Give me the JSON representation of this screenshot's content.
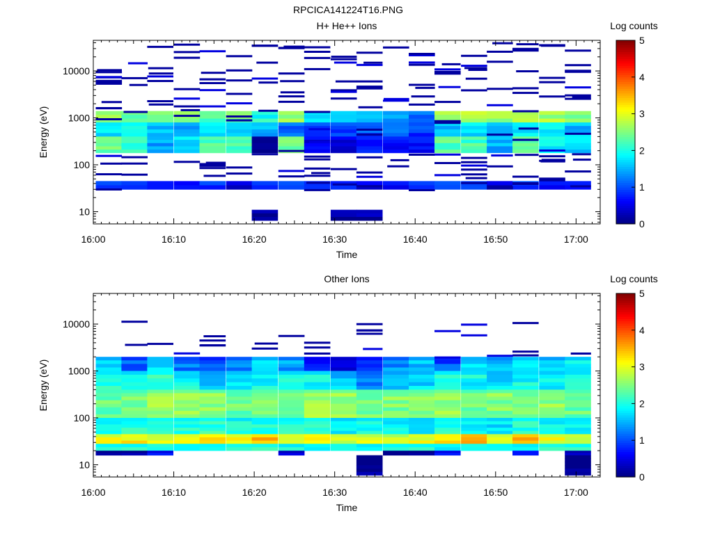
{
  "page_title": "RPCICA141224T16.PNG",
  "chart_data": [
    {
      "type": "heatmap",
      "title": "H+ He++ Ions",
      "xlabel": "Time",
      "ylabel": "Energy (eV)",
      "x_tick_labels": [
        "16:00",
        "16:10",
        "16:20",
        "16:30",
        "16:40",
        "16:50",
        "17:00"
      ],
      "x_range_minutes": [
        0,
        63
      ],
      "y_tick_labels": [
        "10",
        "100",
        "1000",
        "10000"
      ],
      "y_scale": "log",
      "y_range": [
        5.5,
        45000
      ],
      "colorbar": {
        "label": "Log counts",
        "range": [
          0,
          5
        ],
        "tick_labels": [
          "0",
          "1",
          "2",
          "3",
          "4",
          "5"
        ]
      },
      "time_bins_start_minute": [
        0.3,
        3.5,
        6.7,
        10.0,
        13.2,
        16.5,
        19.7,
        23.0,
        26.2,
        29.5,
        32.7,
        36.0,
        39.2,
        42.4,
        45.7,
        48.9,
        52.1,
        55.4,
        58.6
      ],
      "bands": [
        {
          "emin": 800,
          "emax": 1400,
          "levels": [
            2.5,
            2.4,
            2.5,
            2.6,
            2.3,
            2.5,
            2.0,
            2.6,
            1.7,
            1.6,
            1.5,
            1.3,
            1.2,
            2.7,
            2.8,
            2.7,
            2.6,
            2.7,
            2.5
          ]
        },
        {
          "emin": 400,
          "emax": 800,
          "levels": [
            1.7,
            1.8,
            1.6,
            1.4,
            1.8,
            1.6,
            1.5,
            1.2,
            1.0,
            1.0,
            1.0,
            1.1,
            0.9,
            1.6,
            1.8,
            1.5,
            1.7,
            1.8,
            1.6
          ]
        },
        {
          "emin": 180,
          "emax": 400,
          "levels": [
            2.4,
            2.1,
            1.4,
            1.8,
            2.2,
            2.2,
            0.0,
            2.4,
            0.6,
            0.5,
            0.7,
            0.7,
            0.7,
            2.3,
            2.2,
            1.5,
            2.3,
            1.9,
            1.7
          ]
        },
        {
          "emin": 30,
          "emax": 45,
          "levels": [
            0.9,
            0.8,
            0.6,
            0.5,
            0.9,
            0.4,
            0.8,
            0.9,
            0.7,
            0.6,
            0.5,
            0.6,
            0.8,
            0.9,
            0.8,
            0.4,
            0.9,
            0.6,
            0.6
          ]
        },
        {
          "emin": 6.5,
          "emax": 11,
          "levels": [
            null,
            null,
            null,
            null,
            null,
            null,
            0.15,
            null,
            null,
            0.15,
            0.15,
            null,
            null,
            null,
            null,
            null,
            null,
            null,
            null
          ]
        }
      ]
    },
    {
      "type": "heatmap",
      "title": "Other Ions",
      "xlabel": "Time",
      "ylabel": "Energy (eV)",
      "x_tick_labels": [
        "16:00",
        "16:10",
        "16:20",
        "16:30",
        "16:40",
        "16:50",
        "17:00"
      ],
      "x_range_minutes": [
        0,
        63
      ],
      "y_tick_labels": [
        "10",
        "100",
        "1000",
        "10000"
      ],
      "y_scale": "log",
      "y_range": [
        5.5,
        45000
      ],
      "colorbar": {
        "label": "Log counts",
        "range": [
          0,
          5
        ],
        "tick_labels": [
          "0",
          "1",
          "2",
          "3",
          "4",
          "5"
        ]
      },
      "time_bins_start_minute": [
        0.3,
        3.5,
        6.7,
        10.0,
        13.2,
        16.5,
        19.7,
        23.0,
        26.2,
        29.5,
        32.7,
        36.0,
        39.2,
        42.4,
        45.7,
        48.9,
        52.1,
        55.4,
        58.6
      ],
      "bands": [
        {
          "emin": 1000,
          "emax": 2000,
          "levels": [
            1.7,
            1.1,
            1.8,
            1.2,
            1.0,
            1.3,
            1.7,
            1.4,
            0.8,
            0.6,
            0.9,
            1.3,
            1.6,
            1.0,
            1.7,
            1.5,
            1.8,
            1.6,
            1.8
          ]
        },
        {
          "emin": 400,
          "emax": 1000,
          "levels": [
            2.0,
            1.9,
            2.1,
            1.9,
            1.6,
            1.8,
            1.9,
            1.9,
            1.9,
            1.6,
            1.3,
            1.6,
            1.7,
            2.0,
            1.9,
            1.7,
            1.9,
            1.8,
            1.9
          ]
        },
        {
          "emin": 100,
          "emax": 400,
          "levels": [
            2.4,
            2.4,
            2.6,
            2.6,
            2.5,
            2.4,
            2.5,
            2.5,
            2.6,
            2.6,
            2.5,
            2.5,
            2.5,
            2.6,
            2.4,
            2.5,
            2.5,
            2.6,
            2.4
          ]
        },
        {
          "emin": 45,
          "emax": 100,
          "levels": [
            2.0,
            2.0,
            2.1,
            2.0,
            2.1,
            1.9,
            2.0,
            2.0,
            2.1,
            1.8,
            1.9,
            1.9,
            1.8,
            2.0,
            1.9,
            1.8,
            2.0,
            1.9,
            1.9
          ]
        },
        {
          "emin": 28,
          "emax": 45,
          "levels": [
            3.0,
            3.2,
            3.0,
            3.1,
            3.3,
            3.1,
            3.4,
            3.1,
            3.3,
            3.0,
            2.9,
            2.8,
            3.1,
            3.3,
            3.6,
            3.0,
            3.5,
            3.0,
            3.0
          ]
        },
        {
          "emin": 20,
          "emax": 28,
          "levels": [
            2.0,
            2.0,
            2.2,
            2.0,
            2.0,
            2.1,
            2.1,
            1.9,
            2.0,
            2.1,
            1.9,
            2.0,
            2.0,
            2.0,
            2.1,
            2.0,
            1.9,
            2.1,
            2.0
          ]
        },
        {
          "emin": 16,
          "emax": 20,
          "levels": [
            0.2,
            0.2,
            0.6,
            null,
            null,
            null,
            null,
            0.4,
            null,
            null,
            null,
            0.1,
            0.1,
            0.6,
            null,
            null,
            0.8,
            null,
            0.3
          ]
        },
        {
          "emin": 6,
          "emax": 16,
          "levels": [
            null,
            null,
            null,
            null,
            null,
            null,
            null,
            null,
            null,
            null,
            0.05,
            null,
            null,
            null,
            null,
            null,
            null,
            null,
            0.05
          ]
        }
      ]
    }
  ]
}
